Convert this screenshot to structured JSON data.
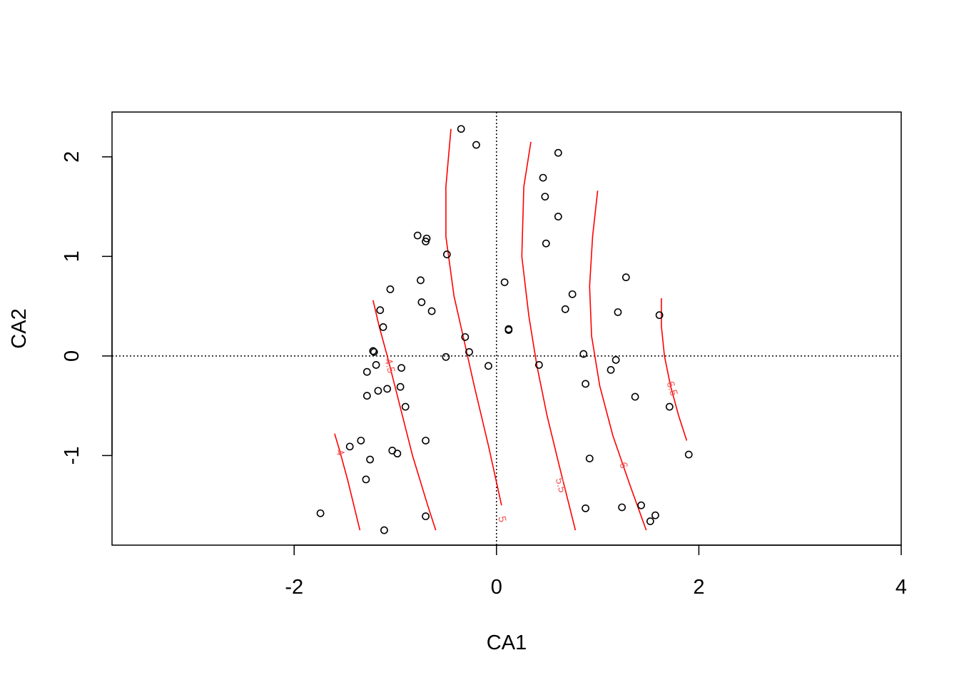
{
  "chart_data": {
    "type": "scatter",
    "xlabel": "CA1",
    "ylabel": "CA2",
    "xlim": [
      -3.8,
      4.0
    ],
    "ylim": [
      -1.9,
      2.45
    ],
    "x_ticks": [
      -2,
      0,
      2,
      4
    ],
    "y_ticks": [
      -1,
      0,
      1,
      2
    ],
    "reference_lines": {
      "x": 0,
      "y": 0,
      "style": "dotted"
    },
    "point_color": "#000000",
    "contour_color": "#ff0000",
    "contour_label_color": "#f05a5a",
    "points": [
      [
        -0.35,
        2.28
      ],
      [
        -0.2,
        2.12
      ],
      [
        0.61,
        2.04
      ],
      [
        0.46,
        1.79
      ],
      [
        0.48,
        1.6
      ],
      [
        0.61,
        1.4
      ],
      [
        -0.78,
        1.21
      ],
      [
        -0.69,
        1.18
      ],
      [
        -0.7,
        1.15
      ],
      [
        0.49,
        1.13
      ],
      [
        -0.49,
        1.02
      ],
      [
        1.28,
        0.79
      ],
      [
        -0.75,
        0.76
      ],
      [
        0.08,
        0.74
      ],
      [
        -1.05,
        0.67
      ],
      [
        0.75,
        0.62
      ],
      [
        -0.74,
        0.54
      ],
      [
        -1.15,
        0.46
      ],
      [
        0.68,
        0.47
      ],
      [
        -0.64,
        0.45
      ],
      [
        1.2,
        0.44
      ],
      [
        1.61,
        0.41
      ],
      [
        -1.12,
        0.29
      ],
      [
        0.12,
        0.27
      ],
      [
        0.12,
        0.26
      ],
      [
        -0.31,
        0.19
      ],
      [
        -1.22,
        0.05
      ],
      [
        -1.21,
        0.04
      ],
      [
        -0.27,
        0.04
      ],
      [
        0.86,
        0.02
      ],
      [
        -0.5,
        -0.01
      ],
      [
        1.18,
        -0.04
      ],
      [
        -1.19,
        -0.09
      ],
      [
        0.42,
        -0.09
      ],
      [
        -0.08,
        -0.1
      ],
      [
        -0.94,
        -0.12
      ],
      [
        1.13,
        -0.14
      ],
      [
        -1.28,
        -0.16
      ],
      [
        0.88,
        -0.28
      ],
      [
        -0.95,
        -0.31
      ],
      [
        -1.08,
        -0.33
      ],
      [
        -1.17,
        -0.35
      ],
      [
        -1.28,
        -0.4
      ],
      [
        1.37,
        -0.41
      ],
      [
        -0.9,
        -0.51
      ],
      [
        1.71,
        -0.51
      ],
      [
        -1.34,
        -0.85
      ],
      [
        -0.7,
        -0.85
      ],
      [
        -1.45,
        -0.91
      ],
      [
        -1.03,
        -0.95
      ],
      [
        -0.98,
        -0.98
      ],
      [
        1.9,
        -0.99
      ],
      [
        0.92,
        -1.03
      ],
      [
        -1.25,
        -1.04
      ],
      [
        -1.29,
        -1.24
      ],
      [
        1.43,
        -1.5
      ],
      [
        0.88,
        -1.53
      ],
      [
        1.24,
        -1.52
      ],
      [
        1.57,
        -1.6
      ],
      [
        -1.74,
        -1.58
      ],
      [
        -0.7,
        -1.61
      ],
      [
        1.52,
        -1.66
      ],
      [
        -1.11,
        -1.75
      ]
    ],
    "contours": [
      {
        "level": "4",
        "label": "4",
        "label_at": [
          -1.55,
          -0.97
        ],
        "label_angle": 75,
        "path": [
          [
            -1.6,
            -0.78
          ],
          [
            -1.55,
            -0.95
          ],
          [
            -1.47,
            -1.25
          ],
          [
            -1.35,
            -1.75
          ]
        ]
      },
      {
        "level": "4.5",
        "label": "4.5",
        "label_at": [
          -1.06,
          -0.1
        ],
        "label_angle": 76,
        "path": [
          [
            -1.22,
            0.56
          ],
          [
            -1.16,
            0.3
          ],
          [
            -1.08,
            0.0
          ],
          [
            -0.98,
            -0.4
          ],
          [
            -0.83,
            -1.0
          ],
          [
            -0.68,
            -1.5
          ],
          [
            -0.6,
            -1.75
          ]
        ]
      },
      {
        "level": "5",
        "label": "5",
        "label_at": [
          0.05,
          -1.64
        ],
        "label_angle": 78,
        "path": [
          [
            -0.45,
            2.28
          ],
          [
            -0.5,
            1.7
          ],
          [
            -0.5,
            1.2
          ],
          [
            -0.42,
            0.6
          ],
          [
            -0.33,
            0.2
          ],
          [
            -0.22,
            -0.3
          ],
          [
            -0.08,
            -0.9
          ],
          [
            0.05,
            -1.5
          ]
        ]
      },
      {
        "level": "5.5",
        "label": "5.5",
        "label_at": [
          0.63,
          -1.3
        ],
        "label_angle": 75,
        "path": [
          [
            0.34,
            2.15
          ],
          [
            0.27,
            1.7
          ],
          [
            0.25,
            1.0
          ],
          [
            0.32,
            0.4
          ],
          [
            0.4,
            -0.1
          ],
          [
            0.5,
            -0.6
          ],
          [
            0.62,
            -1.1
          ],
          [
            0.78,
            -1.75
          ]
        ]
      },
      {
        "level": "6",
        "label": "6",
        "label_at": [
          1.25,
          -1.1
        ],
        "label_angle": 72,
        "path": [
          [
            1.0,
            1.66
          ],
          [
            0.95,
            1.2
          ],
          [
            0.92,
            0.7
          ],
          [
            0.94,
            0.2
          ],
          [
            1.02,
            -0.3
          ],
          [
            1.15,
            -0.8
          ],
          [
            1.32,
            -1.3
          ],
          [
            1.48,
            -1.75
          ]
        ]
      },
      {
        "level": "6.5",
        "label": "6.5",
        "label_at": [
          1.73,
          -0.33
        ],
        "label_angle": 73,
        "path": [
          [
            1.63,
            0.58
          ],
          [
            1.63,
            0.3
          ],
          [
            1.66,
            0.0
          ],
          [
            1.72,
            -0.3
          ],
          [
            1.8,
            -0.6
          ],
          [
            1.88,
            -0.85
          ]
        ]
      }
    ]
  }
}
